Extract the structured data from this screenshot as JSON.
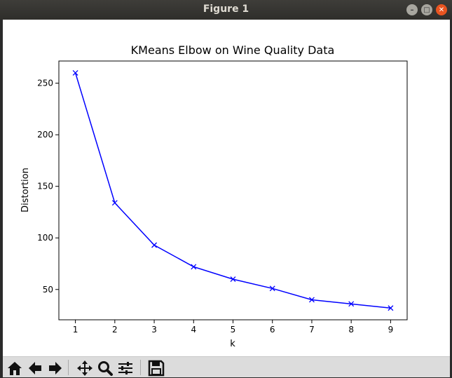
{
  "window": {
    "title": "Figure 1"
  },
  "titlebar_buttons": [
    "minimize-icon",
    "maximize-icon",
    "close-icon"
  ],
  "toolbar": {
    "icons": [
      "home-icon",
      "back-arrow-icon",
      "forward-arrow-icon",
      "pan-move-icon",
      "zoom-icon",
      "subplots-settings-icon",
      "save-icon"
    ]
  },
  "colors": {
    "line": "#0000ff",
    "titlebar_close": "#e95420"
  },
  "chart_data": {
    "type": "line",
    "title": "KMeans Elbow on Wine Quality Data",
    "xlabel": "k",
    "ylabel": "Distortion",
    "x": [
      1,
      2,
      3,
      4,
      5,
      6,
      7,
      8,
      9
    ],
    "y": [
      260,
      134,
      93,
      72,
      60,
      51,
      40,
      36,
      32
    ],
    "marker": "x",
    "xlim": [
      0.58,
      9.42
    ],
    "ylim": [
      20.6,
      271.5
    ],
    "xticks": [
      1,
      2,
      3,
      4,
      5,
      6,
      7,
      8,
      9
    ],
    "yticks": [
      50,
      100,
      150,
      200,
      250
    ],
    "grid": false
  }
}
